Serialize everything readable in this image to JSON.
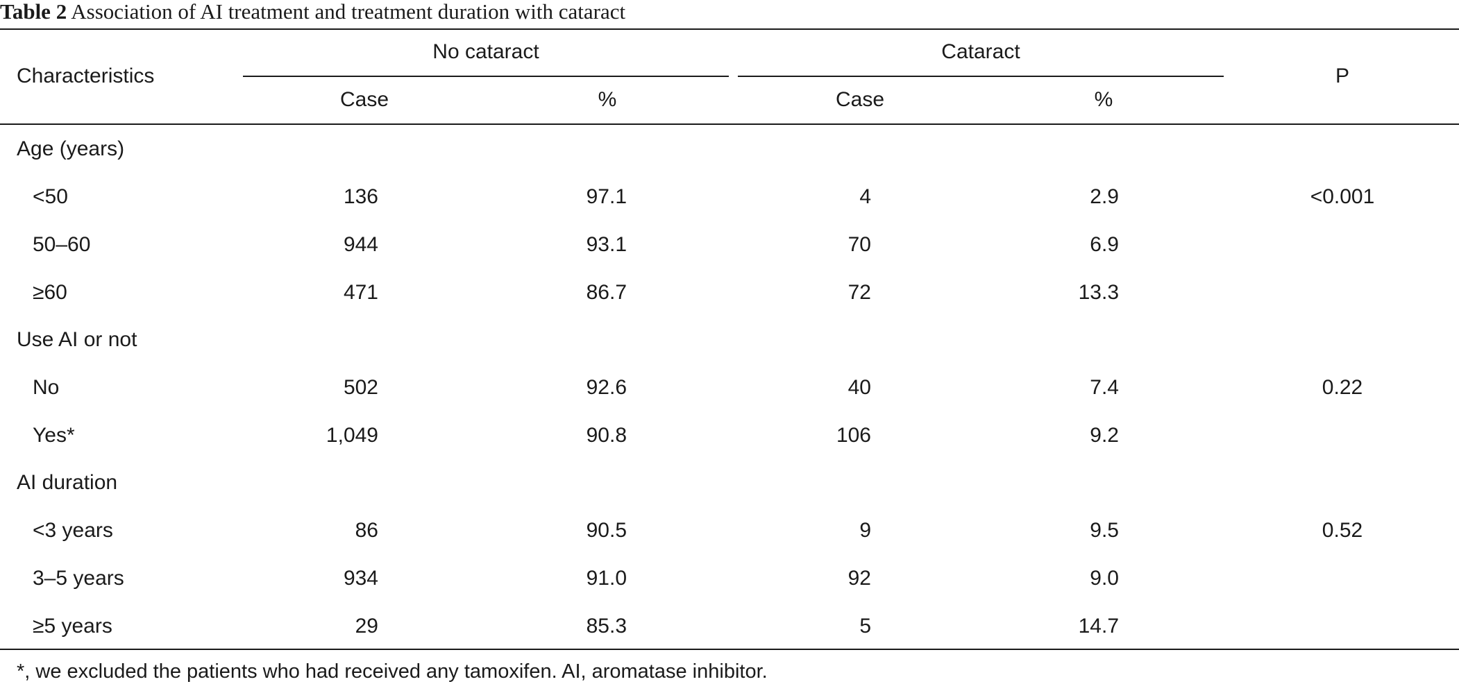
{
  "caption": {
    "label": "Table 2",
    "text": "Association of AI treatment and treatment duration with cataract"
  },
  "header": {
    "characteristics": "Characteristics",
    "group_no_cataract": "No cataract",
    "group_cataract": "Cataract",
    "p": "P",
    "sub": [
      "Case",
      "%",
      "Case",
      "%"
    ]
  },
  "sections": [
    {
      "title": "Age (years)",
      "rows": [
        {
          "label": "<50",
          "nc_case": "136",
          "nc_pct": "97.1",
          "c_case": "4",
          "c_pct": "2.9",
          "p": "<0.001"
        },
        {
          "label": "50–60",
          "nc_case": "944",
          "nc_pct": "93.1",
          "c_case": "70",
          "c_pct": "6.9",
          "p": ""
        },
        {
          "label": "≥60",
          "nc_case": "471",
          "nc_pct": "86.7",
          "c_case": "72",
          "c_pct": "13.3",
          "p": ""
        }
      ]
    },
    {
      "title": "Use AI or not",
      "rows": [
        {
          "label": "No",
          "nc_case": "502",
          "nc_pct": "92.6",
          "c_case": "40",
          "c_pct": "7.4",
          "p": "0.22"
        },
        {
          "label": "Yes*",
          "nc_case": "1,049",
          "nc_pct": "90.8",
          "c_case": "106",
          "c_pct": "9.2",
          "p": ""
        }
      ]
    },
    {
      "title": "AI duration",
      "rows": [
        {
          "label": "<3 years",
          "nc_case": "86",
          "nc_pct": "90.5",
          "c_case": "9",
          "c_pct": "9.5",
          "p": "0.52"
        },
        {
          "label": "3–5 years",
          "nc_case": "934",
          "nc_pct": "91.0",
          "c_case": "92",
          "c_pct": "9.0",
          "p": ""
        },
        {
          "label": "≥5 years",
          "nc_case": "29",
          "nc_pct": "85.3",
          "c_case": "5",
          "c_pct": "14.7",
          "p": ""
        }
      ]
    }
  ],
  "footnote": "*, we excluded the patients who had received any tamoxifen. AI, aromatase inhibitor."
}
